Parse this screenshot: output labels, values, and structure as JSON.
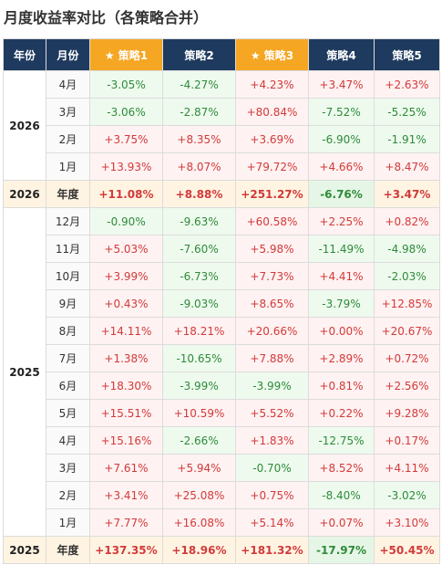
{
  "title": "月度收益率对比（各策略合并）",
  "table": {
    "header": [
      "年份",
      "月份",
      "★ 策略1",
      "策略2",
      "★ 策略3",
      "策略4",
      "策略5"
    ],
    "groups": [
      {
        "year": "2026",
        "rows": [
          {
            "month": "4月",
            "values": [
              "-3.05%",
              "-4.27%",
              "+4.23%",
              "+3.47%",
              "+2.63%"
            ]
          },
          {
            "month": "3月",
            "values": [
              "-3.06%",
              "-2.87%",
              "+80.84%",
              "-7.52%",
              "-5.25%"
            ]
          },
          {
            "month": "2月",
            "values": [
              "+3.75%",
              "+8.35%",
              "+3.69%",
              "-6.90%",
              "-1.91%"
            ]
          },
          {
            "month": "1月",
            "values": [
              "+13.93%",
              "+8.07%",
              "+79.72%",
              "+4.66%",
              "+8.47%"
            ]
          }
        ],
        "summary": {
          "year": "2026",
          "label": "年度",
          "values": [
            "+11.08%",
            "+8.88%",
            "+251.27%",
            "-6.76%",
            "+3.47%"
          ]
        }
      },
      {
        "year": "2025",
        "rows": [
          {
            "month": "12月",
            "values": [
              "-0.90%",
              "-9.63%",
              "+60.58%",
              "+2.25%",
              "+0.82%"
            ]
          },
          {
            "month": "11月",
            "values": [
              "+5.03%",
              "-7.60%",
              "+5.98%",
              "-11.49%",
              "-4.98%"
            ]
          },
          {
            "month": "10月",
            "values": [
              "+3.99%",
              "-6.73%",
              "+7.73%",
              "+4.41%",
              "-2.03%"
            ]
          },
          {
            "month": "9月",
            "values": [
              "+0.43%",
              "-9.03%",
              "+8.65%",
              "-3.79%",
              "+12.85%"
            ]
          },
          {
            "month": "8月",
            "values": [
              "+14.11%",
              "+18.21%",
              "+20.66%",
              "+0.00%",
              "+20.67%"
            ]
          },
          {
            "month": "7月",
            "values": [
              "+1.38%",
              "-10.65%",
              "+7.88%",
              "+2.89%",
              "+0.72%"
            ]
          },
          {
            "month": "6月",
            "values": [
              "+18.30%",
              "-3.99%",
              "-3.99%",
              "+0.81%",
              "+2.56%"
            ]
          },
          {
            "month": "5月",
            "values": [
              "+15.51%",
              "+10.59%",
              "+5.52%",
              "+0.22%",
              "+9.28%"
            ]
          },
          {
            "month": "4月",
            "values": [
              "+15.16%",
              "-2.66%",
              "+1.83%",
              "-12.75%",
              "+0.17%"
            ]
          },
          {
            "month": "3月",
            "values": [
              "+7.61%",
              "+5.94%",
              "-0.70%",
              "+8.52%",
              "+4.11%"
            ]
          },
          {
            "month": "2月",
            "values": [
              "+3.41%",
              "+25.08%",
              "+0.75%",
              "-8.40%",
              "-3.02%"
            ]
          },
          {
            "month": "1月",
            "values": [
              "+7.77%",
              "+16.08%",
              "+5.14%",
              "+0.07%",
              "+3.10%"
            ]
          }
        ],
        "summary": {
          "year": "2025",
          "label": "年度",
          "values": [
            "+137.35%",
            "+18.96%",
            "+181.32%",
            "-17.97%",
            "+50.45%"
          ]
        }
      }
    ]
  }
}
